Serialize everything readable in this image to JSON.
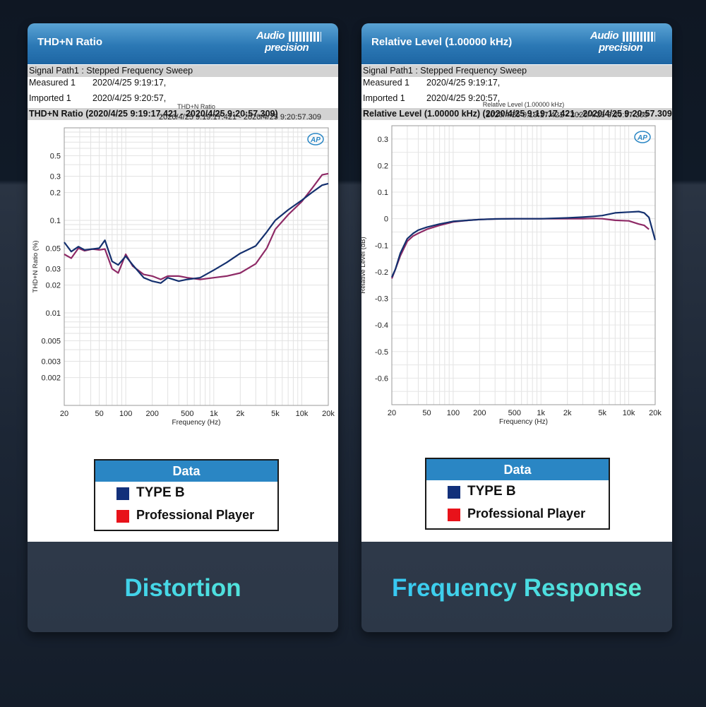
{
  "colors": {
    "type_b": "#14306e",
    "professional": "#8e2a66",
    "legend_type_b": "#12307a",
    "legend_professional": "#e8121a"
  },
  "left": {
    "header_title": "THD+N Ratio",
    "logo": {
      "line1": "Audio",
      "line2": "precision"
    },
    "signal_path": "Signal Path1 : Stepped Frequency Sweep",
    "measured_key": "Measured 1",
    "measured_val": "2020/4/25 9:19:17,",
    "imported_key": "Imported 1",
    "imported_val": "2020/4/25 9:20:57,",
    "range_bar": "THD+N Ratio (2020/4/25 9:19:17.421 - 2020/4/25 9:20:57.309)",
    "legend": {
      "title": "Data",
      "items": [
        "TYPE B",
        "Professional Player"
      ]
    },
    "caption": "Distortion"
  },
  "right": {
    "header_title": "Relative Level (1.00000 kHz)",
    "logo": {
      "line1": "Audio",
      "line2": "precision"
    },
    "signal_path": "Signal Path1 : Stepped Frequency Sweep",
    "measured_key": "Measured 1",
    "measured_val": "2020/4/25 9:19:17,",
    "imported_key": "Imported 1",
    "imported_val": "2020/4/25 9:20:57,",
    "range_bar": "Relative Level (1.00000 kHz) (2020/4/25 9:19:17.421 - 2020/4/25 9:20:57.309)",
    "legend": {
      "title": "Data",
      "items": [
        "TYPE B",
        "Professional Player"
      ]
    },
    "caption": "Frequency Response"
  },
  "chart_data": [
    {
      "type": "line",
      "title": "THD+N Ratio",
      "subtitle": "2020/4/25 9:19:17.421 - 2020/4/25 9:20:57.309",
      "xlabel": "Frequency (Hz)",
      "ylabel": "THD+N Ratio (%)",
      "x_scale": "log",
      "y_scale": "log",
      "xlim": [
        20,
        20000
      ],
      "ylim": [
        0.001,
        1
      ],
      "x_ticks": [
        20,
        50,
        100,
        200,
        500,
        1000,
        2000,
        5000,
        10000,
        20000
      ],
      "x_tick_labels": [
        "20",
        "50",
        "100",
        "200",
        "500",
        "1k",
        "2k",
        "5k",
        "10k",
        "20k"
      ],
      "y_ticks": [
        0.5,
        0.3,
        0.2,
        0.1,
        0.05,
        0.03,
        0.02,
        0.01,
        0.005,
        0.003,
        0.002
      ],
      "y_tick_labels": [
        "0.5",
        "0.3",
        "0.2",
        "0.1",
        "0.05",
        "0.03",
        "0.02",
        "0.01",
        "0.005",
        "0.003",
        "0.002"
      ],
      "grid": true,
      "legend_placement": "bottom",
      "series": [
        {
          "name": "TYPE B",
          "color": "#14306e",
          "x": [
            20,
            24,
            29,
            34,
            42,
            50,
            58,
            70,
            82,
            100,
            120,
            160,
            200,
            250,
            300,
            400,
            500,
            700,
            1000,
            1400,
            2000,
            3000,
            4000,
            5000,
            7000,
            10000,
            13000,
            17000,
            20000
          ],
          "y": [
            0.058,
            0.046,
            0.052,
            0.048,
            0.049,
            0.05,
            0.061,
            0.036,
            0.033,
            0.041,
            0.033,
            0.024,
            0.022,
            0.021,
            0.024,
            0.022,
            0.023,
            0.024,
            0.029,
            0.035,
            0.044,
            0.053,
            0.075,
            0.1,
            0.13,
            0.165,
            0.2,
            0.24,
            0.25
          ]
        },
        {
          "name": "Professional Player",
          "color": "#8e2a66",
          "x": [
            20,
            24,
            29,
            34,
            42,
            50,
            58,
            70,
            82,
            100,
            120,
            160,
            200,
            250,
            300,
            400,
            500,
            700,
            1000,
            1400,
            2000,
            3000,
            4000,
            5000,
            7000,
            10000,
            13000,
            17000,
            20000
          ],
          "y": [
            0.043,
            0.039,
            0.05,
            0.047,
            0.049,
            0.048,
            0.049,
            0.03,
            0.027,
            0.043,
            0.032,
            0.026,
            0.025,
            0.023,
            0.025,
            0.025,
            0.024,
            0.023,
            0.024,
            0.025,
            0.027,
            0.034,
            0.05,
            0.08,
            0.115,
            0.16,
            0.22,
            0.31,
            0.32
          ]
        }
      ]
    },
    {
      "type": "line",
      "title": "Relative Level (1.00000 kHz)",
      "subtitle": "2020/4/25 9:19:17.421 - 2020/4/25 9:20:57.309",
      "xlabel": "Frequency (Hz)",
      "ylabel": "Relative Level (dB)",
      "x_scale": "log",
      "xlim": [
        20,
        20000
      ],
      "ylim": [
        -0.7,
        0.35
      ],
      "x_ticks": [
        20,
        50,
        100,
        200,
        500,
        1000,
        2000,
        5000,
        10000,
        20000
      ],
      "x_tick_labels": [
        "20",
        "50",
        "100",
        "200",
        "500",
        "1k",
        "2k",
        "5k",
        "10k",
        "20k"
      ],
      "y_ticks": [
        0.3,
        0.2,
        0.1,
        0,
        -0.1,
        -0.2,
        -0.3,
        -0.4,
        -0.5,
        -0.6
      ],
      "y_tick_labels": [
        "0.3",
        "0.2",
        "0.1",
        "0",
        "-0.1",
        "-0.2",
        "-0.3",
        "-0.4",
        "-0.5",
        "-0.6"
      ],
      "grid": true,
      "legend_placement": "bottom",
      "series": [
        {
          "name": "TYPE B",
          "color": "#14306e",
          "x": [
            20,
            22,
            25,
            30,
            35,
            40,
            50,
            70,
            100,
            150,
            200,
            300,
            500,
            700,
            1000,
            2000,
            3000,
            4000,
            5000,
            7000,
            10000,
            13000,
            15000,
            17000,
            20000
          ],
          "y": [
            -0.22,
            -0.19,
            -0.13,
            -0.075,
            -0.055,
            -0.043,
            -0.032,
            -0.02,
            -0.01,
            -0.006,
            -0.003,
            -0.001,
            0,
            0,
            0,
            0.003,
            0.006,
            0.009,
            0.012,
            0.022,
            0.025,
            0.027,
            0.022,
            0.005,
            -0.08
          ]
        },
        {
          "name": "Professional Player",
          "color": "#8e2a66",
          "x": [
            20,
            22,
            25,
            30,
            35,
            40,
            50,
            70,
            100,
            150,
            200,
            300,
            500,
            700,
            1000,
            2000,
            3000,
            4000,
            5000,
            7000,
            10000,
            13000,
            15000,
            17000
          ],
          "y": [
            -0.225,
            -0.19,
            -0.14,
            -0.085,
            -0.065,
            -0.055,
            -0.04,
            -0.025,
            -0.012,
            -0.006,
            -0.003,
            -0.001,
            0,
            0,
            0,
            0,
            0,
            0.001,
            0.0,
            -0.006,
            -0.008,
            -0.02,
            -0.025,
            -0.04
          ]
        }
      ]
    }
  ]
}
